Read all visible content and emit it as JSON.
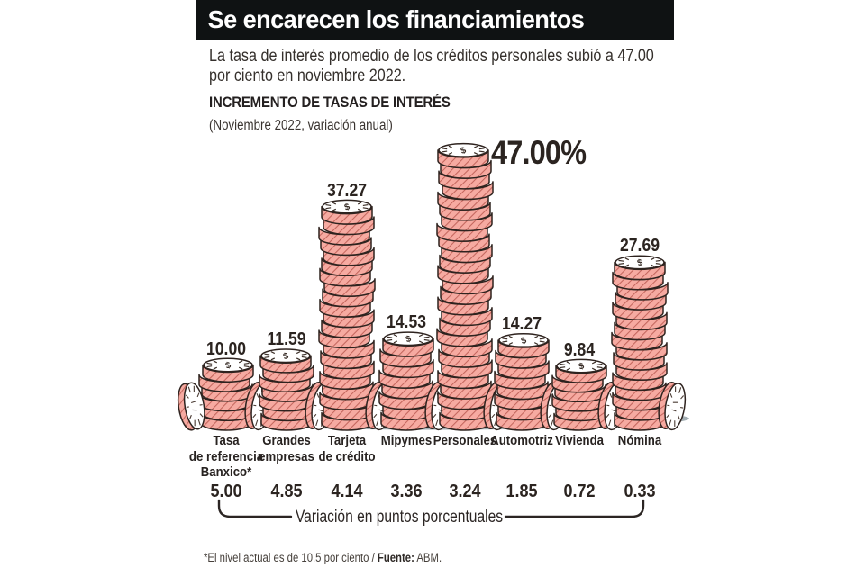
{
  "banner": {
    "title": "Se encarecen los financiamientos"
  },
  "intro_text": "La tasa de interés promedio de los créditos personales subió a 47.00 por ciento en noviembre 2022.",
  "chart_heading": "INCREMENTO DE TASAS DE INTERÉS",
  "chart_subheading": "(Noviembre 2022, variación anual)",
  "chart_data": {
    "type": "bar",
    "title": "INCREMENTO DE TASAS DE INTERÉS",
    "subtitle": "(Noviembre 2022, variación anual)",
    "unit": "percent",
    "ylim": [
      0,
      47
    ],
    "categories": [
      "Tasa de referencia Banxico*",
      "Grandes empresas",
      "Tarjeta de crédito",
      "Mipymes",
      "Personales",
      "Automotriz",
      "Vivienda",
      "Nómina"
    ],
    "category_display": [
      "Tasa\nde referencia\nBanxico*",
      "Grandes\nempresas",
      "Tarjeta\nde crédito",
      "Mipymes",
      "Personales",
      "Automotriz",
      "Vivienda",
      "Nómina"
    ],
    "values": [
      10.0,
      11.59,
      37.27,
      14.53,
      47.0,
      14.27,
      9.84,
      27.69
    ],
    "value_labels": [
      "10.00",
      "11.59",
      "37.27",
      "14.53",
      "47.00%",
      "14.27",
      "9.84",
      "27.69"
    ],
    "highlight_index": 4,
    "variations": [
      "5.00",
      "4.85",
      "4.14",
      "3.36",
      "3.24",
      "1.85",
      "0.72",
      "0.33"
    ],
    "variation_axis_label": "Variación en puntos porcentuales",
    "colors": {
      "coin_fill": "#f6aaa1",
      "coin_hatch": "#c3665d",
      "coin_outline": "#2e231f",
      "coin_face": "#ffffff",
      "shadow": "#a4afb4",
      "banner_bg": "#0f1213",
      "text": "#2b2420"
    }
  },
  "footnote": {
    "note": "*El nivel actual es de 10.5 por ciento / ",
    "source_label": "Fuente:",
    "source_value": " ABM."
  }
}
